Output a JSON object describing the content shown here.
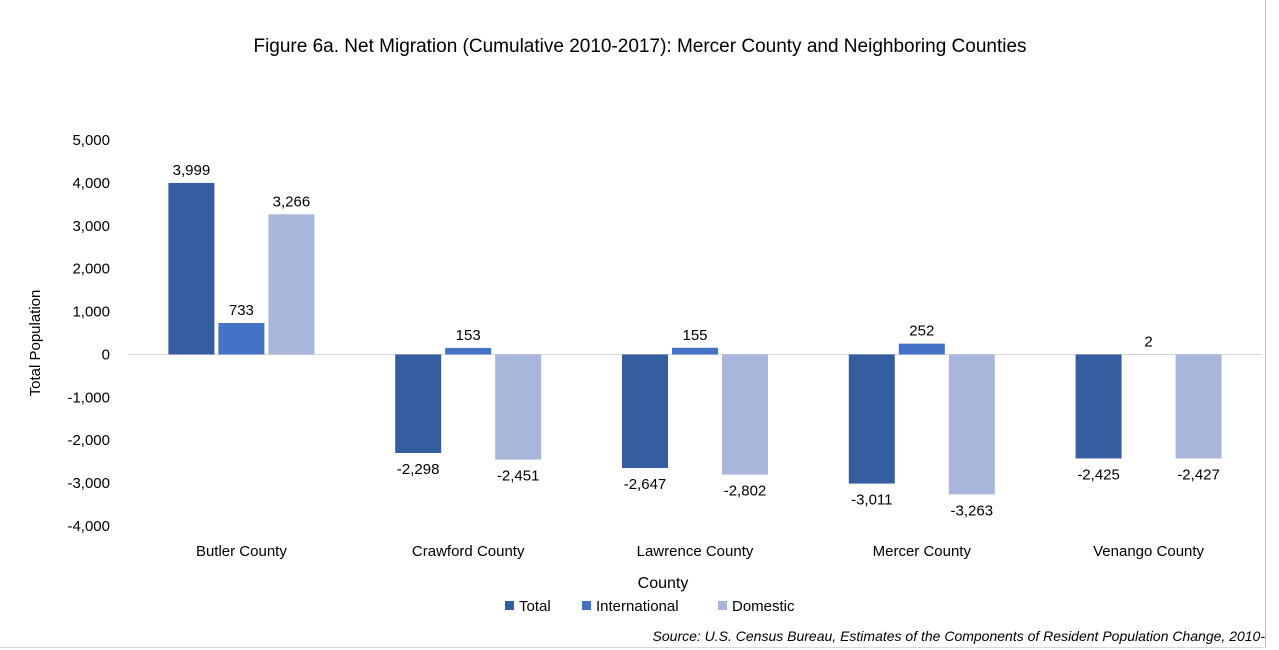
{
  "chart_data": {
    "type": "bar",
    "title": "Figure 6a. Net Migration (Cumulative 2010-2017): Mercer County and Neighboring Counties",
    "xlabel": "County",
    "ylabel": "Total Population",
    "categories": [
      "Butler County",
      "Crawford County",
      "Lawrence County",
      "Mercer County",
      "Venango County"
    ],
    "series": [
      {
        "name": "Total",
        "color": "#355ea1",
        "values": [
          3999,
          -2298,
          -2647,
          -3011,
          -2425
        ],
        "labels": [
          "3,999",
          "-2,298",
          "-2,647",
          "-3,011",
          "-2,425"
        ]
      },
      {
        "name": "International",
        "color": "#4472c4",
        "values": [
          733,
          153,
          155,
          252,
          2
        ],
        "labels": [
          "733",
          "153",
          "155",
          "252",
          "2"
        ]
      },
      {
        "name": "Domestic",
        "color": "#a9b6dc",
        "values": [
          3266,
          -2451,
          -2802,
          -3263,
          -2427
        ],
        "labels": [
          "3,266",
          "-2,451",
          "-2,802",
          "-3,263",
          "-2,427"
        ]
      }
    ],
    "ylim": [
      -4000,
      5000
    ],
    "yticks": [
      5000,
      4000,
      3000,
      2000,
      1000,
      0,
      -1000,
      -2000,
      -3000,
      -4000
    ],
    "ytick_labels": [
      "5,000",
      "4,000",
      "3,000",
      "2,000",
      "1,000",
      "0",
      "-1,000",
      "-2,000",
      "-3,000",
      "-4,000"
    ],
    "grid": false,
    "legend_position": "bottom"
  },
  "source_note": "Source: U.S. Census Bureau, Estimates of the Components of Resident Population Change, 2010-"
}
